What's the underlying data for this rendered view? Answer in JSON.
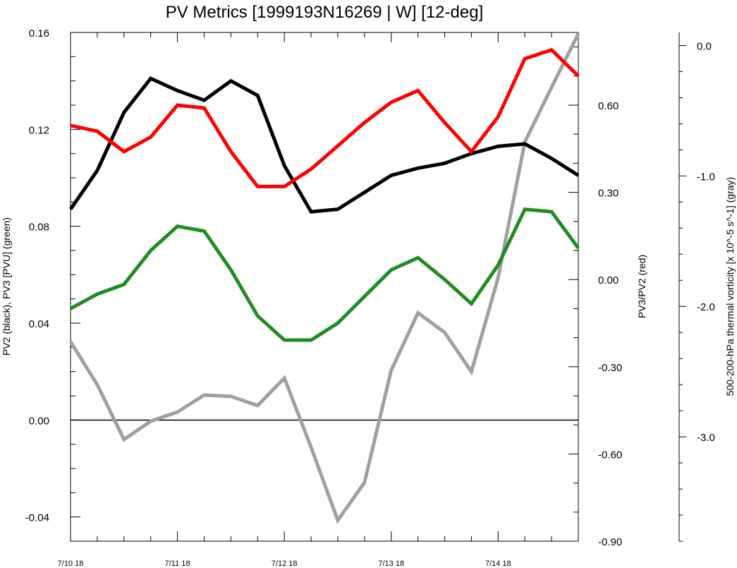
{
  "chart_data": {
    "type": "line",
    "title": "PV Metrics [1999193N16269 | W] [12-deg]",
    "x_tick_labels": [
      "7/10 18",
      "7/11 18",
      "7/12 18",
      "7/13 18",
      "7/14 18"
    ],
    "x_tick_values": [
      0,
      4,
      8,
      12,
      16
    ],
    "x_range": [
      0,
      19
    ],
    "left_axis": {
      "label": "PV2 (black), PV3 [PVU] (green)",
      "range": [
        -0.05,
        0.16
      ],
      "tick_values": [
        -0.04,
        0.0,
        0.04,
        0.08,
        0.12,
        0.16
      ],
      "tick_labels": [
        "-0.04",
        "0.00",
        "0.04",
        "0.08",
        "0.12",
        "0.16"
      ],
      "zero_line": true
    },
    "right_axis": {
      "label": "PV3/PV2 (red)",
      "range": [
        -0.9,
        0.85
      ],
      "tick_values": [
        -0.9,
        -0.6,
        -0.3,
        0.0,
        0.3,
        0.6
      ],
      "tick_labels": [
        "-0.90",
        "-0.60",
        "-0.30",
        "0.00",
        "0.30",
        "0.60"
      ]
    },
    "outer_axis": {
      "label": "500-200-hPa thermal vorticity [x 10^-5 s^-1] (gray)",
      "range": [
        -3.8,
        0.1
      ],
      "tick_values": [
        0.0,
        -1.0,
        -2.0,
        -3.0
      ],
      "tick_labels": [
        "0.0",
        "-1.0",
        "-2.0",
        "-3.0"
      ]
    },
    "series": [
      {
        "name": "PV2",
        "axis": "left",
        "color": "#000000",
        "x": [
          0,
          1,
          2,
          3,
          4,
          5,
          6,
          7,
          8,
          9,
          10,
          11,
          12,
          13,
          14,
          15,
          16,
          17,
          18,
          19
        ],
        "values": [
          0.087,
          0.103,
          0.127,
          0.141,
          0.136,
          0.132,
          0.14,
          0.134,
          0.105,
          0.086,
          0.087,
          0.094,
          0.101,
          0.104,
          0.106,
          0.11,
          0.113,
          0.114,
          0.108,
          0.101
        ]
      },
      {
        "name": "PV3",
        "axis": "left",
        "color": "#228b22",
        "x": [
          0,
          1,
          2,
          3,
          4,
          5,
          6,
          7,
          8,
          9,
          10,
          11,
          12,
          13,
          14,
          15,
          16,
          17,
          18,
          19
        ],
        "values": [
          0.046,
          0.052,
          0.056,
          0.07,
          0.08,
          0.078,
          0.062,
          0.043,
          0.033,
          0.033,
          0.04,
          0.051,
          0.062,
          0.067,
          0.058,
          0.048,
          0.064,
          0.087,
          0.086,
          0.071
        ]
      },
      {
        "name": "PV3/PV2",
        "axis": "right",
        "color": "#ff0000",
        "x": [
          0,
          1,
          2,
          3,
          4,
          5,
          6,
          7,
          8,
          9,
          10,
          11,
          12,
          13,
          14,
          15,
          16,
          17,
          18,
          19
        ],
        "values": [
          0.53,
          0.51,
          0.44,
          0.49,
          0.6,
          0.59,
          0.44,
          0.32,
          0.32,
          0.38,
          0.46,
          0.54,
          0.61,
          0.65,
          0.54,
          0.44,
          0.56,
          0.76,
          0.79,
          0.7
        ]
      },
      {
        "name": "thermal vorticity",
        "axis": "outer",
        "color": "#a0a0a0",
        "x": [
          0,
          1,
          2,
          3,
          4,
          5,
          6,
          7,
          8,
          9,
          10,
          11,
          12,
          13,
          14,
          15,
          16,
          17,
          18,
          19
        ],
        "values": [
          -2.27,
          -2.6,
          -3.02,
          -2.88,
          -2.81,
          -2.68,
          -2.69,
          -2.76,
          -2.55,
          -3.08,
          -3.64,
          -3.35,
          -2.49,
          -2.05,
          -2.2,
          -2.5,
          -1.78,
          -0.74,
          -0.32,
          0.09
        ]
      }
    ]
  }
}
